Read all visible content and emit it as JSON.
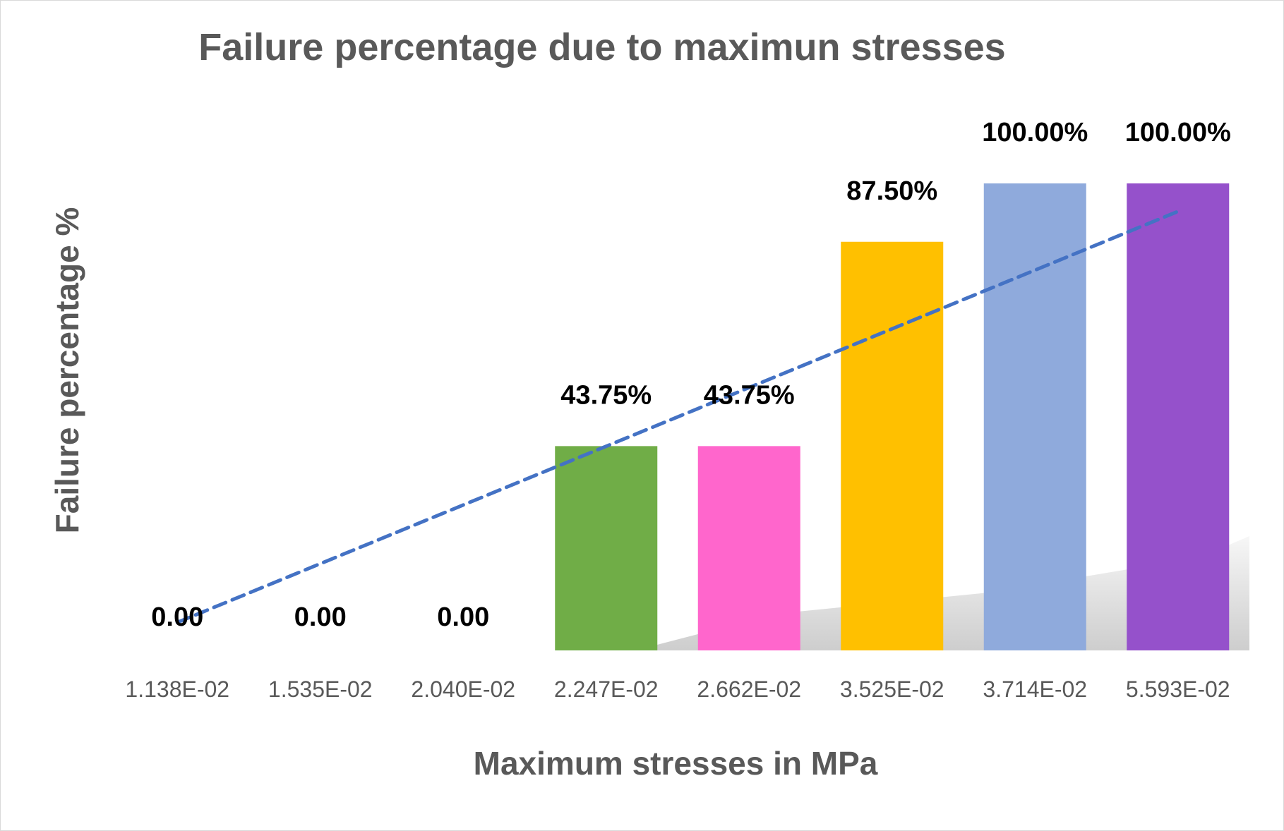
{
  "chart_data": {
    "type": "bar",
    "title": "Failure percentage due to maximun stresses",
    "xlabel": "Maximum stresses in MPa",
    "ylabel": "Failure percentage %",
    "categories": [
      "1.138E-02",
      "1.535E-02",
      "2.040E-02",
      "2.247E-02",
      "2.662E-02",
      "3.525E-02",
      "3.714E-02",
      "5.593E-02"
    ],
    "values": [
      0,
      0,
      0,
      43.75,
      43.75,
      87.5,
      100,
      100
    ],
    "data_labels": [
      "0.00",
      "0.00",
      "0.00",
      "43.75%",
      "43.75%",
      "87.50%",
      "100.00%",
      "100.00%"
    ],
    "colors": [
      "#70AD47",
      "#70AD47",
      "#70AD47",
      "#70AD47",
      "#FF66CC",
      "#FFC000",
      "#8FAADC",
      "#9551CB"
    ],
    "ylim": [
      0,
      100
    ],
    "grid": false,
    "legend": "none",
    "trendline": {
      "type": "linear",
      "style": "dashed",
      "color": "#4472C4",
      "start_value": 6,
      "end_value": 94
    }
  }
}
